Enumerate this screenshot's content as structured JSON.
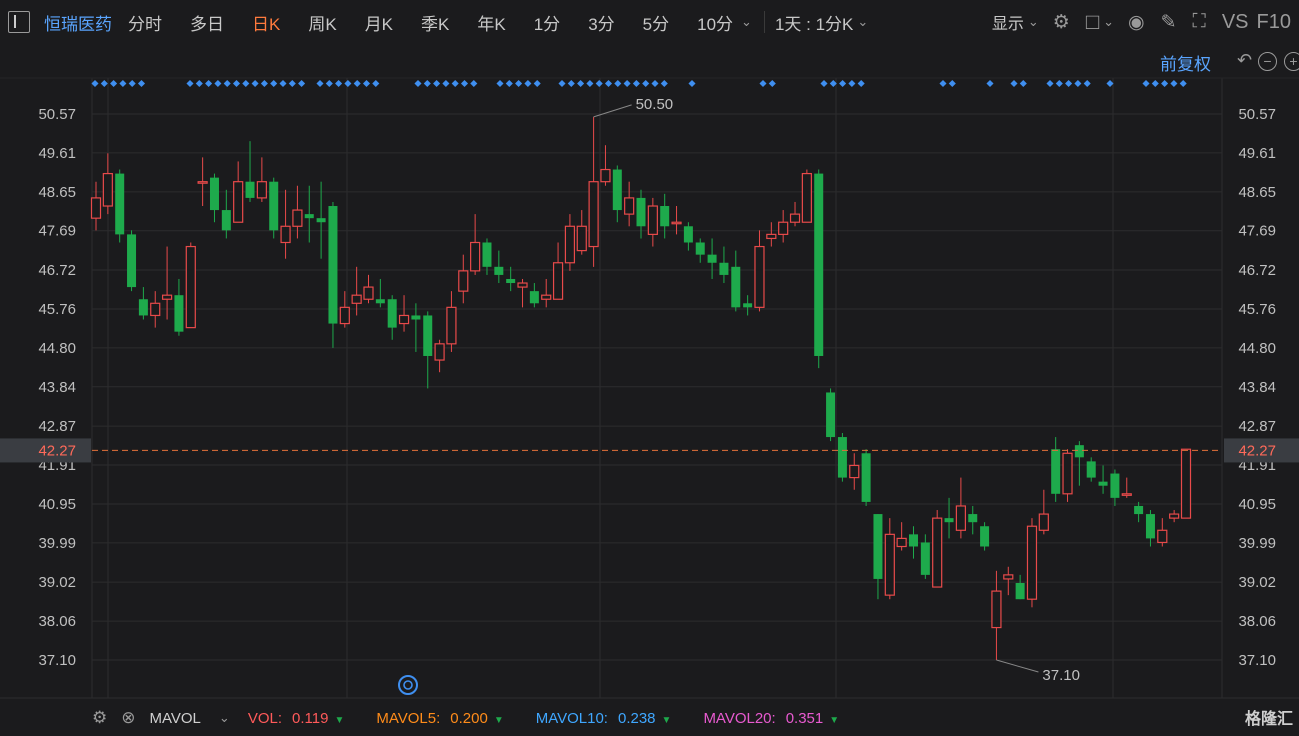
{
  "toolbar": {
    "stock_name": "恒瑞医药",
    "tabs": [
      "分时",
      "多日",
      "日K",
      "周K",
      "月K",
      "季K",
      "年K",
      "1分",
      "3分",
      "5分",
      "10分"
    ],
    "active_tab": "日K",
    "period_select": "1天 : 1分K",
    "display_label": "显示",
    "vs_label": "VS",
    "f10_label": "F10"
  },
  "adjust_label": "前复权",
  "volume_bar": {
    "indicator": "MAVOL",
    "items": [
      {
        "label": "VOL:",
        "value": "0.119",
        "color": "#ff5a5a"
      },
      {
        "label": "MAVOL5:",
        "value": "0.200",
        "color": "#ff8c1a"
      },
      {
        "label": "MAVOL10:",
        "value": "0.238",
        "color": "#3fa7ff"
      },
      {
        "label": "MAVOL20:",
        "value": "0.351",
        "color": "#e85ad0"
      }
    ]
  },
  "brand": "格隆汇",
  "colors": {
    "up": "#e84a4a",
    "down": "#1eaa4c",
    "accent": "#ff7a3d",
    "price_line": "#e3713a",
    "grid": "#2c2c2e"
  },
  "chart_data": {
    "type": "candlestick",
    "y_ticks": [
      50.57,
      49.61,
      48.65,
      47.69,
      46.72,
      45.76,
      44.8,
      43.84,
      42.87,
      41.91,
      40.95,
      39.99,
      39.02,
      38.06,
      37.1
    ],
    "ylim": [
      36.55,
      51.35
    ],
    "current_price": 42.27,
    "high_label": 50.5,
    "low_label": 37.1,
    "candles": [
      {
        "o": 48.0,
        "c": 48.5,
        "h": 48.9,
        "l": 47.7
      },
      {
        "o": 48.3,
        "c": 49.1,
        "h": 49.6,
        "l": 48.1
      },
      {
        "o": 49.1,
        "c": 47.6,
        "h": 49.2,
        "l": 47.4
      },
      {
        "o": 47.6,
        "c": 46.3,
        "h": 47.7,
        "l": 46.2
      },
      {
        "o": 46.0,
        "c": 45.6,
        "h": 46.3,
        "l": 45.5
      },
      {
        "o": 45.6,
        "c": 45.9,
        "h": 46.2,
        "l": 45.3
      },
      {
        "o": 46.0,
        "c": 46.1,
        "h": 47.3,
        "l": 45.5
      },
      {
        "o": 46.1,
        "c": 45.2,
        "h": 46.5,
        "l": 45.1
      },
      {
        "o": 45.3,
        "c": 47.3,
        "h": 47.4,
        "l": 45.3
      },
      {
        "o": 48.9,
        "c": 48.9,
        "h": 49.5,
        "l": 48.3
      },
      {
        "o": 49.0,
        "c": 48.2,
        "h": 49.1,
        "l": 47.9
      },
      {
        "o": 48.2,
        "c": 47.7,
        "h": 48.7,
        "l": 47.5
      },
      {
        "o": 47.9,
        "c": 48.9,
        "h": 49.4,
        "l": 47.9
      },
      {
        "o": 48.9,
        "c": 48.5,
        "h": 49.9,
        "l": 48.4
      },
      {
        "o": 48.5,
        "c": 48.9,
        "h": 49.5,
        "l": 48.4
      },
      {
        "o": 48.9,
        "c": 47.7,
        "h": 49.0,
        "l": 47.5
      },
      {
        "o": 47.4,
        "c": 47.8,
        "h": 48.7,
        "l": 47.0
      },
      {
        "o": 47.8,
        "c": 48.2,
        "h": 48.8,
        "l": 47.5
      },
      {
        "o": 48.1,
        "c": 48.0,
        "h": 48.8,
        "l": 47.4
      },
      {
        "o": 48.0,
        "c": 47.9,
        "h": 48.9,
        "l": 47.0
      },
      {
        "o": 48.3,
        "c": 45.4,
        "h": 48.4,
        "l": 44.8
      },
      {
        "o": 45.4,
        "c": 45.8,
        "h": 46.2,
        "l": 45.3
      },
      {
        "o": 45.9,
        "c": 46.1,
        "h": 46.8,
        "l": 45.6
      },
      {
        "o": 46.0,
        "c": 46.3,
        "h": 46.6,
        "l": 45.9
      },
      {
        "o": 46.0,
        "c": 45.9,
        "h": 46.5,
        "l": 45.8
      },
      {
        "o": 46.0,
        "c": 45.3,
        "h": 46.1,
        "l": 45.0
      },
      {
        "o": 45.4,
        "c": 45.6,
        "h": 46.1,
        "l": 45.2
      },
      {
        "o": 45.6,
        "c": 45.5,
        "h": 45.9,
        "l": 44.7
      },
      {
        "o": 45.6,
        "c": 44.6,
        "h": 45.7,
        "l": 43.8
      },
      {
        "o": 44.5,
        "c": 44.9,
        "h": 45.0,
        "l": 44.2
      },
      {
        "o": 44.9,
        "c": 45.8,
        "h": 46.2,
        "l": 44.7
      },
      {
        "o": 46.2,
        "c": 46.7,
        "h": 47.1,
        "l": 45.9
      },
      {
        "o": 46.7,
        "c": 47.4,
        "h": 48.1,
        "l": 46.6
      },
      {
        "o": 47.4,
        "c": 46.8,
        "h": 47.5,
        "l": 46.6
      },
      {
        "o": 46.8,
        "c": 46.6,
        "h": 47.2,
        "l": 46.4
      },
      {
        "o": 46.5,
        "c": 46.4,
        "h": 46.8,
        "l": 46.2
      },
      {
        "o": 46.3,
        "c": 46.4,
        "h": 46.5,
        "l": 45.8
      },
      {
        "o": 46.2,
        "c": 45.9,
        "h": 46.4,
        "l": 45.8
      },
      {
        "o": 46.0,
        "c": 46.1,
        "h": 46.5,
        "l": 45.8
      },
      {
        "o": 46.0,
        "c": 46.9,
        "h": 47.4,
        "l": 46.0
      },
      {
        "o": 46.9,
        "c": 47.8,
        "h": 48.1,
        "l": 46.7
      },
      {
        "o": 47.2,
        "c": 47.8,
        "h": 48.2,
        "l": 47.1
      },
      {
        "o": 47.3,
        "c": 48.9,
        "h": 50.5,
        "l": 46.8
      },
      {
        "o": 48.9,
        "c": 49.2,
        "h": 49.8,
        "l": 48.8
      },
      {
        "o": 49.2,
        "c": 48.2,
        "h": 49.3,
        "l": 47.9
      },
      {
        "o": 48.1,
        "c": 48.5,
        "h": 48.9,
        "l": 47.8
      },
      {
        "o": 48.5,
        "c": 47.8,
        "h": 48.7,
        "l": 47.5
      },
      {
        "o": 47.6,
        "c": 48.3,
        "h": 48.5,
        "l": 47.3
      },
      {
        "o": 48.3,
        "c": 47.8,
        "h": 48.6,
        "l": 47.5
      },
      {
        "o": 47.9,
        "c": 47.9,
        "h": 48.3,
        "l": 47.6
      },
      {
        "o": 47.8,
        "c": 47.4,
        "h": 47.9,
        "l": 47.2
      },
      {
        "o": 47.4,
        "c": 47.1,
        "h": 47.5,
        "l": 46.9
      },
      {
        "o": 47.1,
        "c": 46.9,
        "h": 47.5,
        "l": 46.5
      },
      {
        "o": 46.9,
        "c": 46.6,
        "h": 47.3,
        "l": 46.4
      },
      {
        "o": 46.8,
        "c": 45.8,
        "h": 47.2,
        "l": 45.7
      },
      {
        "o": 45.9,
        "c": 45.8,
        "h": 46.1,
        "l": 45.6
      },
      {
        "o": 45.8,
        "c": 47.3,
        "h": 47.7,
        "l": 45.7
      },
      {
        "o": 47.5,
        "c": 47.6,
        "h": 47.9,
        "l": 47.3
      },
      {
        "o": 47.6,
        "c": 47.9,
        "h": 48.2,
        "l": 47.4
      },
      {
        "o": 47.9,
        "c": 48.1,
        "h": 48.4,
        "l": 47.8
      },
      {
        "o": 47.9,
        "c": 49.1,
        "h": 49.2,
        "l": 47.9
      },
      {
        "o": 49.1,
        "c": 44.6,
        "h": 49.2,
        "l": 44.3
      },
      {
        "o": 43.7,
        "c": 42.6,
        "h": 43.8,
        "l": 42.5
      },
      {
        "o": 42.6,
        "c": 41.6,
        "h": 42.7,
        "l": 41.5
      },
      {
        "o": 41.6,
        "c": 41.9,
        "h": 42.2,
        "l": 41.3
      },
      {
        "o": 42.2,
        "c": 41.0,
        "h": 42.3,
        "l": 40.9
      },
      {
        "o": 40.7,
        "c": 39.1,
        "h": 40.7,
        "l": 38.6
      },
      {
        "o": 38.7,
        "c": 40.2,
        "h": 40.6,
        "l": 38.6
      },
      {
        "o": 39.9,
        "c": 40.1,
        "h": 40.5,
        "l": 39.8
      },
      {
        "o": 40.2,
        "c": 39.9,
        "h": 40.4,
        "l": 39.6
      },
      {
        "o": 40.0,
        "c": 39.2,
        "h": 40.2,
        "l": 39.1
      },
      {
        "o": 38.9,
        "c": 40.6,
        "h": 40.8,
        "l": 38.9
      },
      {
        "o": 40.6,
        "c": 40.5,
        "h": 41.1,
        "l": 40.1
      },
      {
        "o": 40.3,
        "c": 40.9,
        "h": 41.6,
        "l": 40.1
      },
      {
        "o": 40.7,
        "c": 40.5,
        "h": 40.9,
        "l": 40.2
      },
      {
        "o": 40.4,
        "c": 39.9,
        "h": 40.5,
        "l": 39.8
      },
      {
        "o": 37.9,
        "c": 38.8,
        "h": 39.3,
        "l": 37.1
      },
      {
        "o": 39.1,
        "c": 39.2,
        "h": 39.4,
        "l": 38.7
      },
      {
        "o": 39.0,
        "c": 38.6,
        "h": 39.2,
        "l": 38.6
      },
      {
        "o": 38.6,
        "c": 40.4,
        "h": 40.6,
        "l": 38.4
      },
      {
        "o": 40.3,
        "c": 40.7,
        "h": 41.3,
        "l": 40.2
      },
      {
        "o": 42.3,
        "c": 41.2,
        "h": 42.6,
        "l": 41.0
      },
      {
        "o": 41.2,
        "c": 42.2,
        "h": 42.3,
        "l": 41.0
      },
      {
        "o": 42.4,
        "c": 42.1,
        "h": 42.5,
        "l": 41.4
      },
      {
        "o": 42.0,
        "c": 41.6,
        "h": 42.1,
        "l": 41.5
      },
      {
        "o": 41.5,
        "c": 41.4,
        "h": 41.9,
        "l": 41.2
      },
      {
        "o": 41.7,
        "c": 41.1,
        "h": 41.8,
        "l": 40.9
      },
      {
        "o": 41.2,
        "c": 41.2,
        "h": 41.6,
        "l": 41.1
      },
      {
        "o": 40.9,
        "c": 40.7,
        "h": 41.0,
        "l": 40.5
      },
      {
        "o": 40.7,
        "c": 40.1,
        "h": 40.8,
        "l": 39.9
      },
      {
        "o": 40.0,
        "c": 40.3,
        "h": 40.6,
        "l": 39.9
      },
      {
        "o": 40.6,
        "c": 40.7,
        "h": 40.8,
        "l": 40.5
      },
      {
        "o": 40.6,
        "c": 42.3,
        "h": 42.3,
        "l": 40.6
      }
    ]
  }
}
